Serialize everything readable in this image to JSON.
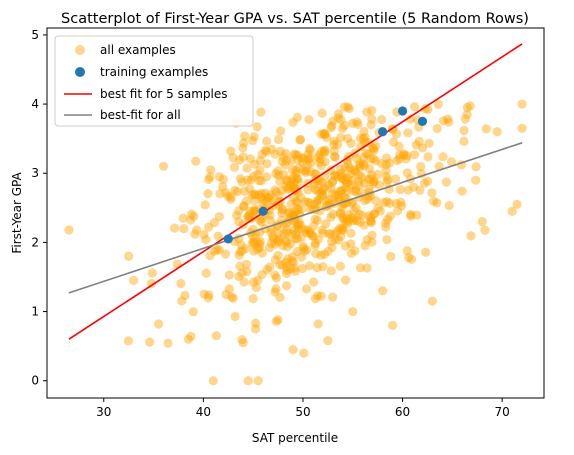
{
  "chart_data": {
    "type": "scatter",
    "title": "Scatterplot of First-Year GPA vs. SAT percentile (5 Random Rows)",
    "xlabel": "SAT percentile",
    "ylabel": "First-Year GPA",
    "xlim": [
      24.3,
      74.2
    ],
    "ylim": [
      -0.25,
      5.1
    ],
    "xticks": [
      30,
      40,
      50,
      60,
      70
    ],
    "yticks": [
      0,
      1,
      2,
      3,
      4,
      5
    ],
    "grid": false,
    "legend_position": "top-left",
    "series": [
      {
        "name": "all examples",
        "kind": "scatter",
        "color": "#ffa500",
        "alpha": 0.45,
        "points_random": {
          "count": 700,
          "x_mean": 51.5,
          "x_sd": 6.5,
          "y_mean": 2.65,
          "y_sd": 0.72,
          "correlation": 0.45,
          "seed": 7
        },
        "points": [
          [
            26.5,
            2.18
          ],
          [
            32.5,
            1.8
          ],
          [
            33.0,
            1.45
          ],
          [
            35.5,
            0.82
          ],
          [
            38.5,
            0.6
          ],
          [
            41.0,
            0.0
          ],
          [
            44.5,
            0.0
          ],
          [
            45.5,
            0.0
          ],
          [
            44.0,
            0.55
          ],
          [
            49.0,
            0.45
          ],
          [
            52.5,
            0.58
          ],
          [
            59.0,
            0.8
          ],
          [
            63.0,
            1.15
          ],
          [
            72.0,
            4.0
          ],
          [
            72.0,
            3.65
          ],
          [
            71.5,
            2.55
          ],
          [
            71.0,
            2.45
          ],
          [
            68.0,
            2.3
          ],
          [
            36.0,
            3.1
          ],
          [
            66.5,
            3.95
          ],
          [
            58.0,
            1.3
          ],
          [
            40.5,
            1.2
          ],
          [
            55.0,
            1.0
          ],
          [
            47.5,
            0.88
          ],
          [
            69.5,
            3.6
          ]
        ]
      },
      {
        "name": "training examples",
        "kind": "scatter",
        "color": "#1f77b4",
        "points": [
          [
            42.5,
            2.05
          ],
          [
            46.0,
            2.45
          ],
          [
            58.0,
            3.6
          ],
          [
            60.0,
            3.9
          ],
          [
            62.0,
            3.75
          ]
        ]
      },
      {
        "name": "best fit for 5 samples",
        "kind": "line",
        "color": "#ff0000",
        "points": [
          [
            26.5,
            0.6
          ],
          [
            72.0,
            4.87
          ]
        ]
      },
      {
        "name": "best-fit for all",
        "kind": "line",
        "color": "#808080",
        "points": [
          [
            26.5,
            1.27
          ],
          [
            72.0,
            3.44
          ]
        ]
      }
    ]
  }
}
